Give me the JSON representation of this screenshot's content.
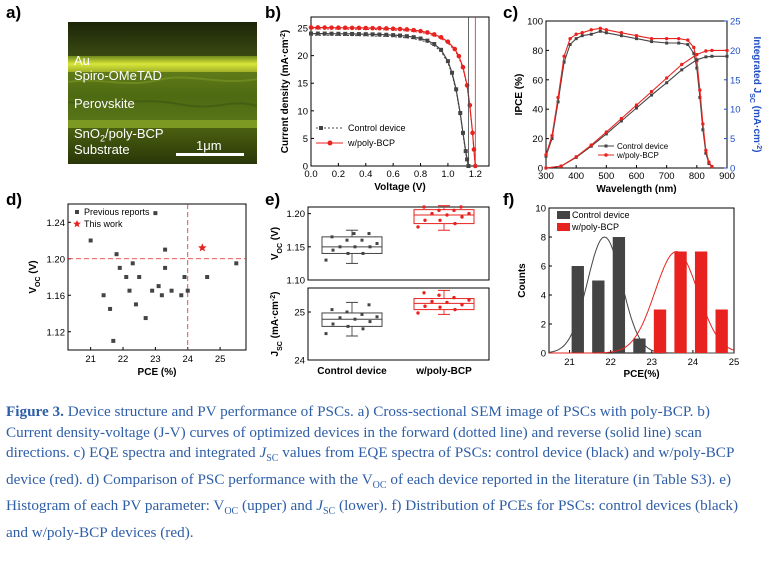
{
  "panels": {
    "a": "a)",
    "b": "b)",
    "c": "c)",
    "d": "d)",
    "e": "e)",
    "f": "f)"
  },
  "sem": {
    "layers": [
      "Au",
      "Spiro-OMeTAD",
      "Perovskite",
      "SnO2/poly-BCP",
      "Substrate"
    ],
    "scale_bar": "1μm"
  },
  "caption": {
    "figure_label": "Figure 3.",
    "text": " Device structure and PV performance of PSCs. a) Cross-sectional SEM image of PSCs with poly-BCP. b) Current density-voltage (J-V) curves of optimized devices in the forward (dotted line) and reverse (solid line) scan directions. c) EQE spectra and integrated J_SC values from EQE spectra of PSCs: control device (black) and w/poly-BCP device (red). d) Comparison of PSC performance with the V_OC of each device reported in the literature (in Table S3). e) Histogram of each PV parameter: V_OC (upper) and J_SC (lower). f) Distribution of PCEs for PSCs: control devices (black) and w/poly-BCP devices (red)."
  },
  "colors": {
    "control": "#444444",
    "bcp": "#e8231f",
    "eqe_axis": "#1f4fc4",
    "caption": "#2e5ea8"
  },
  "chart_data": [
    {
      "panel": "b",
      "type": "line",
      "xlabel": "Voltage (V)",
      "ylabel": "Current density (mA·cm-2)",
      "xlim": [
        0,
        1.3
      ],
      "ylim": [
        0,
        27
      ],
      "xticks": [
        "0.0",
        "0.2",
        "0.4",
        "0.6",
        "0.8",
        "1.0",
        "1.2"
      ],
      "yticks": [
        "0",
        "5",
        "10",
        "15",
        "20",
        "25"
      ],
      "legend": [
        "Control device",
        "w/poly-BCP"
      ],
      "series": [
        {
          "name": "Control device",
          "x": [
            0,
            0.05,
            0.1,
            0.15,
            0.2,
            0.25,
            0.3,
            0.35,
            0.4,
            0.45,
            0.5,
            0.55,
            0.6,
            0.65,
            0.7,
            0.75,
            0.8,
            0.85,
            0.9,
            0.95,
            1.0,
            1.03,
            1.06,
            1.09,
            1.11,
            1.13,
            1.14,
            1.15
          ],
          "y": [
            24.0,
            24.0,
            24.0,
            23.98,
            23.96,
            23.95,
            23.93,
            23.91,
            23.89,
            23.86,
            23.82,
            23.78,
            23.72,
            23.64,
            23.52,
            23.35,
            23.1,
            22.72,
            22.1,
            21.05,
            19.0,
            16.9,
            13.9,
            9.6,
            6.0,
            2.7,
            1.2,
            0
          ]
        },
        {
          "name": "w/poly-BCP",
          "x": [
            0,
            0.05,
            0.1,
            0.15,
            0.2,
            0.25,
            0.3,
            0.35,
            0.4,
            0.45,
            0.5,
            0.55,
            0.6,
            0.65,
            0.7,
            0.75,
            0.8,
            0.85,
            0.9,
            0.95,
            1.0,
            1.05,
            1.08,
            1.11,
            1.14,
            1.16,
            1.18,
            1.19,
            1.2
          ],
          "y": [
            25.1,
            25.1,
            25.08,
            25.07,
            25.06,
            25.05,
            25.03,
            25.02,
            25.0,
            24.98,
            24.96,
            24.93,
            24.88,
            24.82,
            24.74,
            24.62,
            24.44,
            24.2,
            23.84,
            23.32,
            22.52,
            21.2,
            19.9,
            17.9,
            14.6,
            11.0,
            6.0,
            3.0,
            0
          ]
        }
      ]
    },
    {
      "panel": "c",
      "type": "line",
      "xlabel": "Wavelength (nm)",
      "ylabel": "IPCE (%)",
      "y2label": "Integrated JSC (mA·cm-2)",
      "xlim": [
        300,
        900
      ],
      "ylim": [
        0,
        100
      ],
      "y2lim": [
        0,
        25
      ],
      "xticks": [
        "300",
        "400",
        "500",
        "600",
        "700",
        "800",
        "900"
      ],
      "yticks": [
        "0",
        "20",
        "40",
        "60",
        "80",
        "100"
      ],
      "y2ticks": [
        "0",
        "5",
        "10",
        "15",
        "20",
        "25"
      ],
      "legend": [
        "Control device",
        "w/poly-BCP"
      ],
      "series": [
        {
          "name": "Control device",
          "axis": "left",
          "x": [
            300,
            320,
            340,
            360,
            380,
            400,
            420,
            450,
            480,
            500,
            550,
            600,
            650,
            700,
            740,
            770,
            790,
            800,
            810,
            820,
            830,
            840,
            850
          ],
          "y": [
            8,
            20,
            45,
            72,
            84,
            88,
            90,
            91,
            93,
            92,
            90,
            88,
            86,
            85,
            85,
            84,
            78,
            68,
            48,
            26,
            10,
            3,
            1
          ]
        },
        {
          "name": "w/poly-BCP",
          "axis": "left",
          "x": [
            300,
            320,
            340,
            360,
            380,
            400,
            420,
            450,
            480,
            500,
            550,
            600,
            650,
            700,
            740,
            770,
            790,
            800,
            810,
            820,
            830,
            840,
            850
          ],
          "y": [
            9,
            22,
            48,
            76,
            88,
            91,
            92,
            94,
            95,
            94,
            92,
            90,
            88,
            88,
            88,
            87,
            82,
            73,
            53,
            30,
            12,
            4,
            1
          ]
        },
        {
          "name": "Control device",
          "axis": "right",
          "x": [
            300,
            350,
            400,
            450,
            500,
            550,
            600,
            650,
            700,
            750,
            800,
            830,
            850,
            900
          ],
          "y": [
            0,
            0.3,
            1.8,
            3.7,
            5.8,
            8.0,
            10.2,
            12.4,
            14.5,
            16.7,
            18.4,
            18.9,
            19.0,
            19.0
          ]
        },
        {
          "name": "w/poly-BCP",
          "axis": "right",
          "x": [
            300,
            350,
            400,
            450,
            500,
            550,
            600,
            650,
            700,
            750,
            800,
            830,
            850,
            900
          ],
          "y": [
            0,
            0.3,
            1.9,
            3.9,
            6.1,
            8.4,
            10.7,
            13.0,
            15.3,
            17.6,
            19.3,
            19.9,
            20.0,
            20.0
          ]
        }
      ]
    },
    {
      "panel": "d",
      "type": "scatter",
      "xlabel": "PCE (%)",
      "ylabel": "VOC (V)",
      "xlim": [
        20.3,
        25.8
      ],
      "ylim": [
        1.1,
        1.26
      ],
      "xticks": [
        "21",
        "22",
        "23",
        "24",
        "25"
      ],
      "yticks": [
        "1.12",
        "1.16",
        "1.20",
        "1.24"
      ],
      "legend": [
        "Previous reports",
        "This work"
      ],
      "series": [
        {
          "name": "Previous reports",
          "points": [
            [
              21.0,
              1.22
            ],
            [
              21.4,
              1.16
            ],
            [
              21.6,
              1.145
            ],
            [
              21.7,
              1.11
            ],
            [
              21.8,
              1.205
            ],
            [
              21.9,
              1.19
            ],
            [
              22.1,
              1.18
            ],
            [
              22.2,
              1.165
            ],
            [
              22.3,
              1.195
            ],
            [
              22.4,
              1.15
            ],
            [
              22.5,
              1.18
            ],
            [
              22.7,
              1.135
            ],
            [
              22.9,
              1.165
            ],
            [
              23.0,
              1.25
            ],
            [
              23.1,
              1.17
            ],
            [
              23.2,
              1.16
            ],
            [
              23.3,
              1.21
            ],
            [
              23.3,
              1.19
            ],
            [
              23.5,
              1.165
            ],
            [
              23.8,
              1.16
            ],
            [
              23.9,
              1.18
            ],
            [
              24.0,
              1.165
            ],
            [
              24.6,
              1.18
            ],
            [
              25.5,
              1.195
            ]
          ]
        },
        {
          "name": "This work",
          "points": [
            [
              24.45,
              1.212
            ]
          ]
        }
      ],
      "guides": {
        "x": 24.0,
        "y": 1.2
      }
    },
    {
      "panel": "e-upper",
      "type": "box",
      "ylabel": "VOC (V)",
      "ylim": [
        1.1,
        1.21
      ],
      "yticks": [
        "1.10",
        "1.15",
        "1.20"
      ],
      "categories": [
        "Control device",
        "w/poly-BCP"
      ],
      "boxes": [
        {
          "name": "Control device",
          "min": 1.125,
          "q1": 1.14,
          "median": 1.15,
          "q3": 1.165,
          "max": 1.175,
          "points": [
            1.13,
            1.14,
            1.14,
            1.145,
            1.15,
            1.15,
            1.15,
            1.155,
            1.16,
            1.16,
            1.165,
            1.17,
            1.17
          ]
        },
        {
          "name": "w/poly-BCP",
          "min": 1.175,
          "q1": 1.185,
          "median": 1.198,
          "q3": 1.206,
          "max": 1.212,
          "points": [
            1.18,
            1.185,
            1.19,
            1.19,
            1.195,
            1.198,
            1.2,
            1.2,
            1.205,
            1.205,
            1.21,
            1.21
          ]
        }
      ]
    },
    {
      "panel": "e-lower",
      "type": "box",
      "ylabel": "JSC (mA·cm-2)",
      "ylim": [
        24,
        25.5
      ],
      "yticks": [
        "24",
        "25"
      ],
      "categories": [
        "Control device",
        "w/poly-BCP"
      ],
      "xtick_labels": [
        "Control device",
        "w/poly-BCP"
      ],
      "boxes": [
        {
          "name": "Control device",
          "min": 24.5,
          "q1": 24.7,
          "median": 24.85,
          "q3": 24.98,
          "max": 25.2,
          "points": [
            24.55,
            24.65,
            24.7,
            24.75,
            24.8,
            24.85,
            24.88,
            24.9,
            24.95,
            25.0,
            25.05,
            25.15
          ]
        },
        {
          "name": "w/poly-BCP",
          "min": 24.95,
          "q1": 25.05,
          "median": 25.18,
          "q3": 25.28,
          "max": 25.45,
          "points": [
            24.98,
            25.05,
            25.1,
            25.12,
            25.15,
            25.2,
            25.22,
            25.25,
            25.3,
            25.35,
            25.4
          ]
        }
      ]
    },
    {
      "panel": "f",
      "type": "bar",
      "xlabel": "PCE(%)",
      "ylabel": "Counts",
      "xlim": [
        20.5,
        25
      ],
      "ylim": [
        0,
        10
      ],
      "xticks": [
        "21",
        "22",
        "23",
        "24",
        "25"
      ],
      "yticks": [
        "0",
        "2",
        "4",
        "6",
        "8",
        "10"
      ],
      "legend": [
        "Control device",
        "w/poly-BCP"
      ],
      "series": [
        {
          "name": "Control device",
          "bins": [
            21.2,
            21.7,
            22.2,
            22.7
          ],
          "values": [
            6,
            5,
            8,
            1
          ],
          "fit": {
            "mu": 21.85,
            "sigma": 0.42,
            "peak": 8
          }
        },
        {
          "name": "w/poly-BCP",
          "bins": [
            23.2,
            23.7,
            24.2,
            24.7
          ],
          "values": [
            3,
            7,
            7,
            3
          ],
          "fit": {
            "mu": 23.6,
            "sigma": 0.52,
            "peak": 7
          }
        }
      ]
    }
  ]
}
